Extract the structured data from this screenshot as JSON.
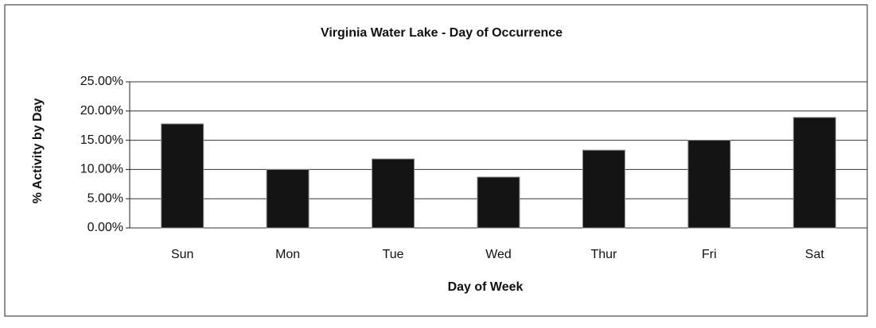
{
  "chart_data": {
    "type": "bar",
    "title": "Virginia Water Lake - Day of Occurrence",
    "x_label": "Day of Week",
    "y_label": "% Activity by Day",
    "categories": [
      "Sun",
      "Mon",
      "Tue",
      "Wed",
      "Thur",
      "Fri",
      "Sat"
    ],
    "values": [
      17.8,
      10.0,
      11.8,
      8.7,
      13.3,
      15.0,
      18.9
    ],
    "color": "#141414",
    "ylim": [
      0,
      25
    ],
    "yticks": [
      {
        "value": 0,
        "label": "0.00%"
      },
      {
        "value": 5,
        "label": "5.00%"
      },
      {
        "value": 10,
        "label": "10.00%"
      },
      {
        "value": 15,
        "label": "15.00%"
      },
      {
        "value": 20,
        "label": "20.00%"
      },
      {
        "value": 25,
        "label": "25.00%"
      }
    ],
    "grid": true
  }
}
